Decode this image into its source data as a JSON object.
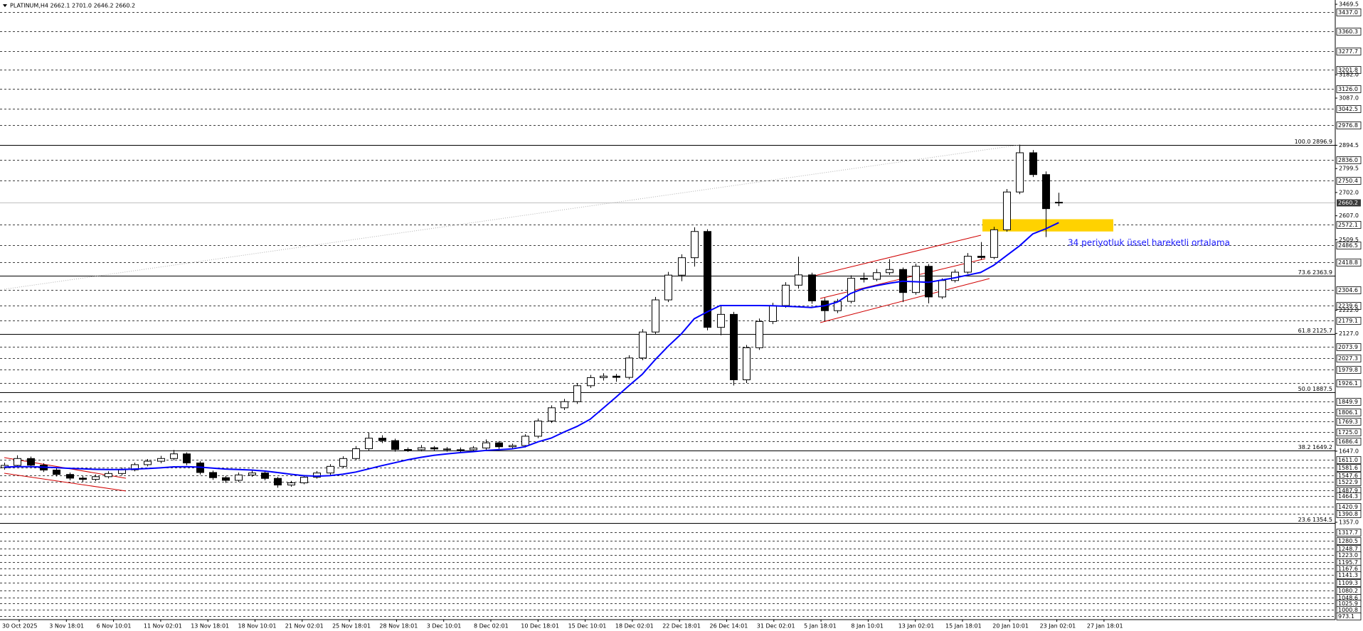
{
  "chart_data": {
    "type": "candlestick",
    "title": "PLATINUM,H4  2662.1 2701.0 2646.2 2660.2",
    "ylim": [
      960,
      3487
    ],
    "up_color": "#ffffff",
    "down_color": "#000000",
    "candles": [
      [
        1580,
        1600,
        1572,
        1589
      ],
      [
        1589,
        1630,
        1585,
        1617
      ],
      [
        1617,
        1625,
        1582,
        1590
      ],
      [
        1590,
        1598,
        1562,
        1570
      ],
      [
        1570,
        1578,
        1544,
        1552
      ],
      [
        1552,
        1560,
        1528,
        1537
      ],
      [
        1537,
        1545,
        1522,
        1532
      ],
      [
        1532,
        1552,
        1525,
        1543
      ],
      [
        1543,
        1565,
        1536,
        1556
      ],
      [
        1556,
        1580,
        1548,
        1571
      ],
      [
        1571,
        1600,
        1565,
        1592
      ],
      [
        1592,
        1615,
        1585,
        1606
      ],
      [
        1606,
        1628,
        1598,
        1617
      ],
      [
        1617,
        1652,
        1610,
        1636
      ],
      [
        1636,
        1642,
        1590,
        1599
      ],
      [
        1599,
        1606,
        1552,
        1560
      ],
      [
        1560,
        1568,
        1530,
        1539
      ],
      [
        1539,
        1546,
        1518,
        1528
      ],
      [
        1528,
        1560,
        1522,
        1550
      ],
      [
        1550,
        1570,
        1542,
        1558
      ],
      [
        1558,
        1565,
        1528,
        1536
      ],
      [
        1536,
        1542,
        1498,
        1509
      ],
      [
        1509,
        1526,
        1502,
        1518
      ],
      [
        1518,
        1550,
        1512,
        1541
      ],
      [
        1541,
        1566,
        1535,
        1558
      ],
      [
        1558,
        1594,
        1550,
        1585
      ],
      [
        1585,
        1626,
        1578,
        1617
      ],
      [
        1617,
        1668,
        1610,
        1657
      ],
      [
        1657,
        1722,
        1650,
        1700
      ],
      [
        1700,
        1712,
        1680,
        1690
      ],
      [
        1690,
        1698,
        1645,
        1654
      ],
      [
        1654,
        1662,
        1644,
        1653
      ],
      [
        1653,
        1672,
        1646,
        1661
      ],
      [
        1661,
        1668,
        1648,
        1656
      ],
      [
        1656,
        1664,
        1645,
        1653
      ],
      [
        1653,
        1662,
        1644,
        1653
      ],
      [
        1653,
        1668,
        1646,
        1660
      ],
      [
        1660,
        1695,
        1652,
        1681
      ],
      [
        1681,
        1688,
        1656,
        1665
      ],
      [
        1665,
        1678,
        1658,
        1670
      ],
      [
        1670,
        1716,
        1662,
        1708
      ],
      [
        1708,
        1780,
        1700,
        1770
      ],
      [
        1770,
        1834,
        1762,
        1824
      ],
      [
        1824,
        1860,
        1815,
        1849
      ],
      [
        1849,
        1924,
        1840,
        1914
      ],
      [
        1914,
        1958,
        1905,
        1947
      ],
      [
        1947,
        1965,
        1935,
        1953
      ],
      [
        1953,
        1962,
        1930,
        1948
      ],
      [
        1948,
        2038,
        1940,
        2027
      ],
      [
        2027,
        2145,
        2018,
        2133
      ],
      [
        2133,
        2276,
        2125,
        2264
      ],
      [
        2264,
        2378,
        2255,
        2365
      ],
      [
        2365,
        2450,
        2340,
        2436
      ],
      [
        2436,
        2560,
        2400,
        2543
      ],
      [
        2543,
        2552,
        2140,
        2152
      ],
      [
        2152,
        2240,
        2120,
        2205
      ],
      [
        2205,
        2215,
        1915,
        1938
      ],
      [
        1938,
        2080,
        1925,
        2069
      ],
      [
        2069,
        2188,
        2060,
        2176
      ],
      [
        2176,
        2252,
        2165,
        2241
      ],
      [
        2241,
        2336,
        2232,
        2324
      ],
      [
        2324,
        2440,
        2310,
        2366
      ],
      [
        2366,
        2375,
        2248,
        2260
      ],
      [
        2260,
        2272,
        2180,
        2220
      ],
      [
        2220,
        2268,
        2210,
        2258
      ],
      [
        2258,
        2364,
        2250,
        2352
      ],
      [
        2352,
        2375,
        2335,
        2348
      ],
      [
        2348,
        2390,
        2340,
        2375
      ],
      [
        2375,
        2430,
        2366,
        2388
      ],
      [
        2388,
        2396,
        2255,
        2294
      ],
      [
        2294,
        2412,
        2285,
        2401
      ],
      [
        2401,
        2410,
        2250,
        2276
      ],
      [
        2276,
        2352,
        2268,
        2343
      ],
      [
        2343,
        2388,
        2335,
        2377
      ],
      [
        2377,
        2455,
        2370,
        2442
      ],
      [
        2442,
        2500,
        2428,
        2437
      ],
      [
        2437,
        2562,
        2430,
        2550
      ],
      [
        2550,
        2716,
        2542,
        2704
      ],
      [
        2704,
        2896.9,
        2695,
        2864
      ],
      [
        2864,
        2875,
        2765,
        2775
      ],
      [
        2775,
        2788,
        2520,
        2636
      ],
      [
        2662.1,
        2701.0,
        2646.2,
        2660.2
      ]
    ],
    "ema": {
      "color": "#0000ff",
      "label": "34 periyotluk üssel hareketli ortalama",
      "values": [
        1582,
        1584,
        1584,
        1582,
        1580,
        1577,
        1575,
        1573,
        1572,
        1572,
        1574,
        1576,
        1579,
        1583,
        1584,
        1582,
        1578,
        1574,
        1572,
        1570,
        1566,
        1560,
        1553,
        1547,
        1545,
        1547,
        1553,
        1562,
        1575,
        1588,
        1600,
        1612,
        1622,
        1630,
        1636,
        1641,
        1645,
        1650,
        1653,
        1656,
        1665,
        1685,
        1700,
        1725,
        1748,
        1777,
        1822,
        1868,
        1915,
        1960,
        2020,
        2075,
        2125,
        2187,
        2215,
        2241,
        2241,
        2241,
        2241,
        2240,
        2238,
        2236,
        2233,
        2240,
        2255,
        2290,
        2310,
        2322,
        2332,
        2340,
        2338,
        2336,
        2345,
        2354,
        2365,
        2376,
        2405,
        2445,
        2485,
        2533,
        2554,
        2579
      ]
    },
    "zone": {
      "from": 2543,
      "to": 2593,
      "color": "#ffd200"
    },
    "current_price": 2660.2,
    "fib": [
      {
        "value": 2896.9,
        "label": "100.0 2896.9"
      },
      {
        "value": 2363.9,
        "label": "73.6 2363.9"
      },
      {
        "value": 2125.7,
        "label": "61.8 2125.7"
      },
      {
        "value": 1887.5,
        "label": "50.0 1887.5"
      },
      {
        "value": 1649.2,
        "label": "38.2 1649.2"
      },
      {
        "value": 1354.5,
        "label": "23.6 1354.5"
      }
    ],
    "levels": [
      {
        "value": 3437,
        "label": "3437.0"
      },
      3360.3,
      3277.7,
      3201.8,
      {
        "value": 3126,
        "label": "3126.0"
      },
      3042.5,
      2976.8,
      {
        "value": 2836,
        "label": "2836.0"
      },
      2750.4,
      2572.1,
      2486.5,
      2418.8,
      2304.6,
      2239.6,
      2179.1,
      2073.9,
      2027.3,
      1979.8,
      1926.1,
      1849.9,
      1806.1,
      1769.3,
      {
        "value": 1725,
        "label": "1725.0"
      },
      1686.4,
      {
        "value": 1611,
        "label": "1611.0"
      },
      1581.6,
      1547.6,
      1522.9,
      1487.9,
      1464.3,
      1420.9,
      1390.8,
      1317.7,
      1280.5,
      1248.7,
      {
        "value": 1223,
        "label": "1223.0"
      },
      1195.7,
      1167.6,
      1141.3,
      1109.3,
      1080.2,
      1048.6,
      1025.9,
      1000.8,
      973.1
    ],
    "yticks": [
      3469.5,
      {
        "value": 3182,
        "label": "3182.0"
      },
      {
        "value": 3087,
        "label": "3087.0"
      },
      2894.5,
      2799.5,
      {
        "value": 2702,
        "label": "2702.0"
      },
      {
        "value": 2607,
        "label": "2607.0"
      },
      2509.5,
      {
        "value": 2222,
        "label": "2222.0"
      },
      {
        "value": 2127,
        "label": "2127.0"
      },
      {
        "value": 1647,
        "label": "1647.0"
      },
      {
        "value": 1357,
        "label": "1357.0"
      }
    ],
    "xlabels": [
      "30 Oct 2025",
      "3 Nov 18:01",
      "6 Nov 10:01",
      "11 Nov 02:01",
      "13 Nov 18:01",
      "18 Nov 10:01",
      "21 Nov 02:01",
      "25 Nov 18:01",
      "28 Nov 18:01",
      "3 Dec 10:01",
      "8 Dec 02:01",
      "10 Dec 18:01",
      "15 Dec 10:01",
      "18 Dec 02:01",
      "22 Dec 18:01",
      "26 Dec 14:01",
      "31 Dec 02:01",
      "5 Jan 18:01",
      "8 Jan 10:01",
      "13 Jan 02:01",
      "15 Jan 18:01",
      "20 Jan 10:01",
      "23 Jan 02:01",
      "27 Jan 18:01"
    ]
  }
}
